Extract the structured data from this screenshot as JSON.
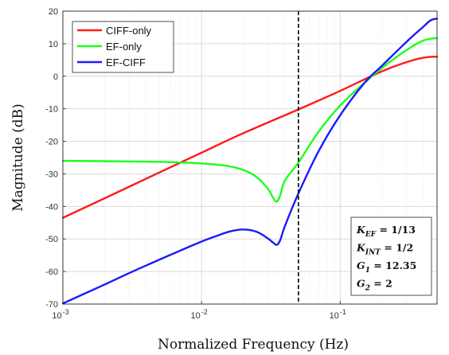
{
  "chart_data": {
    "type": "line",
    "xscale": "log",
    "xlim": [
      0.001,
      0.5
    ],
    "ylim": [
      -70,
      20
    ],
    "xlabel": "Normalized Frequency (Hz)",
    "ylabel": "Magnitude (dB)",
    "grid": true,
    "legend_position": "top-left",
    "xticks": [
      {
        "value": 0.001,
        "base": "10",
        "exp": "-3"
      },
      {
        "value": 0.01,
        "base": "10",
        "exp": "-2"
      },
      {
        "value": 0.1,
        "base": "10",
        "exp": "-1"
      }
    ],
    "yticks": [
      20,
      10,
      0,
      -10,
      -20,
      -30,
      -40,
      -50,
      -60,
      -70
    ],
    "vline": {
      "x": 0.05,
      "style": "dashed",
      "color": "#000000"
    },
    "series": [
      {
        "name": "CIFF-only",
        "color": "#ff1a1a",
        "x": [
          0.001,
          0.002,
          0.005,
          0.01,
          0.02,
          0.05,
          0.1,
          0.2,
          0.3,
          0.4,
          0.5
        ],
        "y": [
          -43.5,
          -37.5,
          -29.5,
          -23.5,
          -17.5,
          -10.2,
          -4.5,
          1.5,
          4.3,
          5.7,
          6.0
        ]
      },
      {
        "name": "EF-only",
        "color": "#1aff1a",
        "x": [
          0.001,
          0.002,
          0.005,
          0.01,
          0.015,
          0.02,
          0.025,
          0.03,
          0.033,
          0.035,
          0.037,
          0.04,
          0.05,
          0.07,
          0.1,
          0.15,
          0.2,
          0.3,
          0.4,
          0.5
        ],
        "y": [
          -26,
          -26.1,
          -26.3,
          -26.8,
          -27.5,
          -28.8,
          -31,
          -34.5,
          -37.5,
          -38.5,
          -36.5,
          -32,
          -26.5,
          -17,
          -9,
          -2,
          2.5,
          8,
          11,
          11.7
        ]
      },
      {
        "name": "EF-CIFF",
        "color": "#1a1aff",
        "x": [
          0.001,
          0.002,
          0.003,
          0.005,
          0.007,
          0.01,
          0.013,
          0.016,
          0.02,
          0.025,
          0.03,
          0.033,
          0.035,
          0.037,
          0.04,
          0.05,
          0.07,
          0.1,
          0.15,
          0.2,
          0.3,
          0.4,
          0.45,
          0.5
        ],
        "y": [
          -69.8,
          -64,
          -60.5,
          -56.3,
          -53.6,
          -50.8,
          -49,
          -47.7,
          -47.1,
          -47.8,
          -49.8,
          -51.2,
          -51.8,
          -50.3,
          -46,
          -36,
          -23,
          -12,
          -2,
          3.2,
          10.5,
          15.3,
          17.2,
          17.7
        ]
      }
    ]
  },
  "annotation": {
    "lines": [
      {
        "sym": "K",
        "sub": "EF",
        "value": "1/13"
      },
      {
        "sym": "K",
        "sub": "INT",
        "value": "1/2"
      },
      {
        "sym": "G",
        "sub": "1",
        "value": "12.35"
      },
      {
        "sym": "G",
        "sub": "2",
        "value": "2"
      }
    ]
  }
}
